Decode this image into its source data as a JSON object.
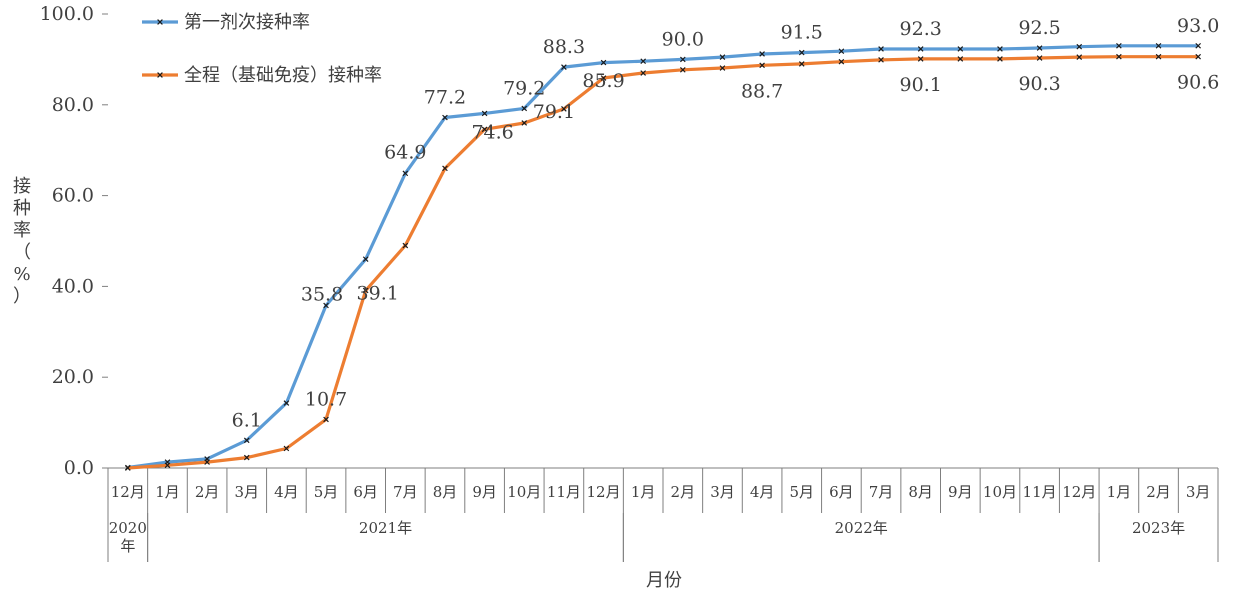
{
  "chart_data": {
    "type": "line",
    "categories": [
      "12月",
      "1月",
      "2月",
      "3月",
      "4月",
      "5月",
      "6月",
      "7月",
      "8月",
      "9月",
      "10月",
      "11月",
      "12月",
      "1月",
      "2月",
      "3月",
      "4月",
      "5月",
      "6月",
      "7月",
      "8月",
      "9月",
      "10月",
      "11月",
      "12月",
      "1月",
      "2月",
      "3月"
    ],
    "year_groups": [
      {
        "label": "2020年",
        "start": 0,
        "end": 0
      },
      {
        "label": "2021年",
        "start": 1,
        "end": 12
      },
      {
        "label": "2022年",
        "start": 13,
        "end": 24
      },
      {
        "label": "2023年",
        "start": 25,
        "end": 27
      }
    ],
    "series": [
      {
        "name": "第一剂次接种率",
        "color": "#5B9BD5",
        "values": [
          0.1,
          1.3,
          2.0,
          6.1,
          14.3,
          35.8,
          46.0,
          64.9,
          77.2,
          78.1,
          79.2,
          88.3,
          89.3,
          89.6,
          90.0,
          90.5,
          91.2,
          91.5,
          91.8,
          92.3,
          92.3,
          92.3,
          92.3,
          92.5,
          92.8,
          93.0,
          93.0,
          93.0
        ],
        "labels": {
          "3": "6.1",
          "5": "35.8",
          "7": "64.9",
          "8": "77.2",
          "10": "79.2",
          "11": "88.3",
          "14": "90.0",
          "17": "91.5",
          "20": "92.3",
          "23": "92.5",
          "27": "93.0"
        }
      },
      {
        "name": "全程（基础免疫）接种率",
        "color": "#ED7D31",
        "values": [
          0.0,
          0.6,
          1.3,
          2.3,
          4.3,
          10.7,
          39.1,
          49.0,
          66.0,
          74.6,
          76.0,
          79.1,
          85.9,
          87.0,
          87.7,
          88.1,
          88.7,
          89.0,
          89.5,
          89.9,
          90.1,
          90.1,
          90.1,
          90.3,
          90.5,
          90.6,
          90.6,
          90.6
        ],
        "labels": {
          "5": "10.7",
          "6": "39.1",
          "9": "74.6",
          "11": "79.1",
          "12": "85.9",
          "16": "88.7",
          "20": "90.1",
          "23": "90.3",
          "27": "90.6"
        }
      }
    ],
    "yticks": [
      "0.0",
      "20.0",
      "40.0",
      "60.0",
      "80.0",
      "100.0"
    ],
    "ylim": [
      0,
      100
    ],
    "ylabel": "接种率（%）",
    "xlabel": "月份",
    "grid": false,
    "legend_position": "top-left"
  }
}
